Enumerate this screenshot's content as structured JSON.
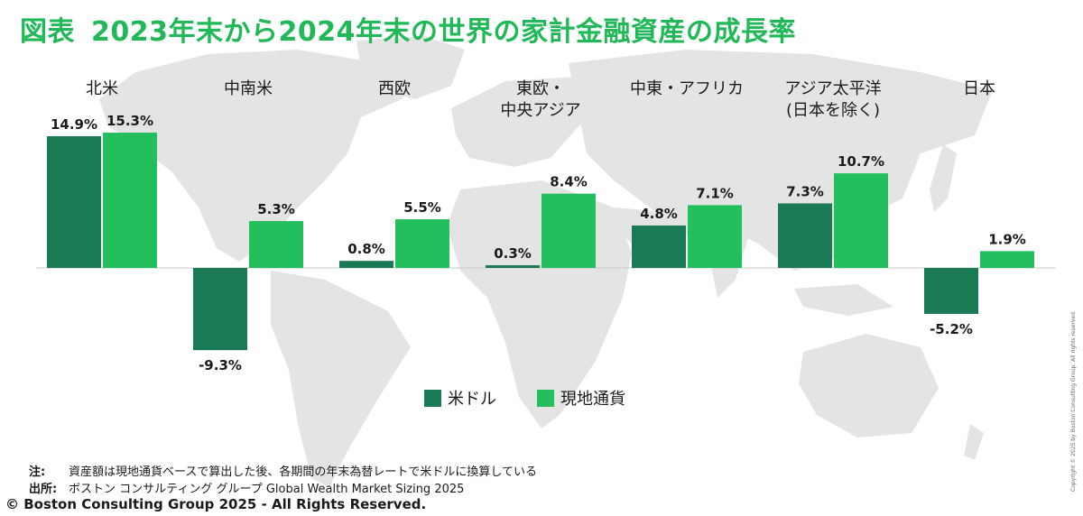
{
  "header": {
    "fig_label": "図表",
    "title": "2023年末から2024年末の世界の家計金融資産の成長率"
  },
  "chart_data": {
    "type": "bar",
    "categories": [
      [
        "北米"
      ],
      [
        "中南米"
      ],
      [
        "西欧"
      ],
      [
        "東欧・",
        "中央アジア"
      ],
      [
        "中東・アフリカ"
      ],
      [
        "アジア太平洋",
        "(日本を除く)"
      ],
      [
        "日本"
      ]
    ],
    "series": [
      {
        "name": "米ドル",
        "values": [
          14.9,
          -9.3,
          0.8,
          0.3,
          4.8,
          7.3,
          -5.2
        ],
        "color": "#1b7a56"
      },
      {
        "name": "現地通貨",
        "values": [
          15.3,
          5.3,
          5.5,
          8.4,
          7.1,
          10.7,
          1.9
        ],
        "color": "#23bf5c"
      }
    ],
    "data_labels": [
      [
        "14.9%",
        "-9.3%",
        "0.8%",
        "0.3%",
        "4.8%",
        "7.3%",
        "-5.2%"
      ],
      [
        "15.3%",
        "5.3%",
        "5.5%",
        "8.4%",
        "7.1%",
        "10.7%",
        "1.9%"
      ]
    ],
    "ylim": [
      -11,
      16
    ],
    "legend": "bottom-center"
  },
  "notes": {
    "note_label": "注:",
    "note_text": "資産額は現地通貨ベースで算出した後、各期間の年末為替レートで米ドルに換算している",
    "source_label": "出所:",
    "source_text": "ボストン コンサルティング グループ Global Wealth Market Sizing 2025"
  },
  "footer": {
    "copyright": "© Boston Consulting Group 2025 - All Rights Reserved.",
    "vertical_copyright": "Copyright © 2025 by Boston Consulting Group. All rights reserved."
  }
}
